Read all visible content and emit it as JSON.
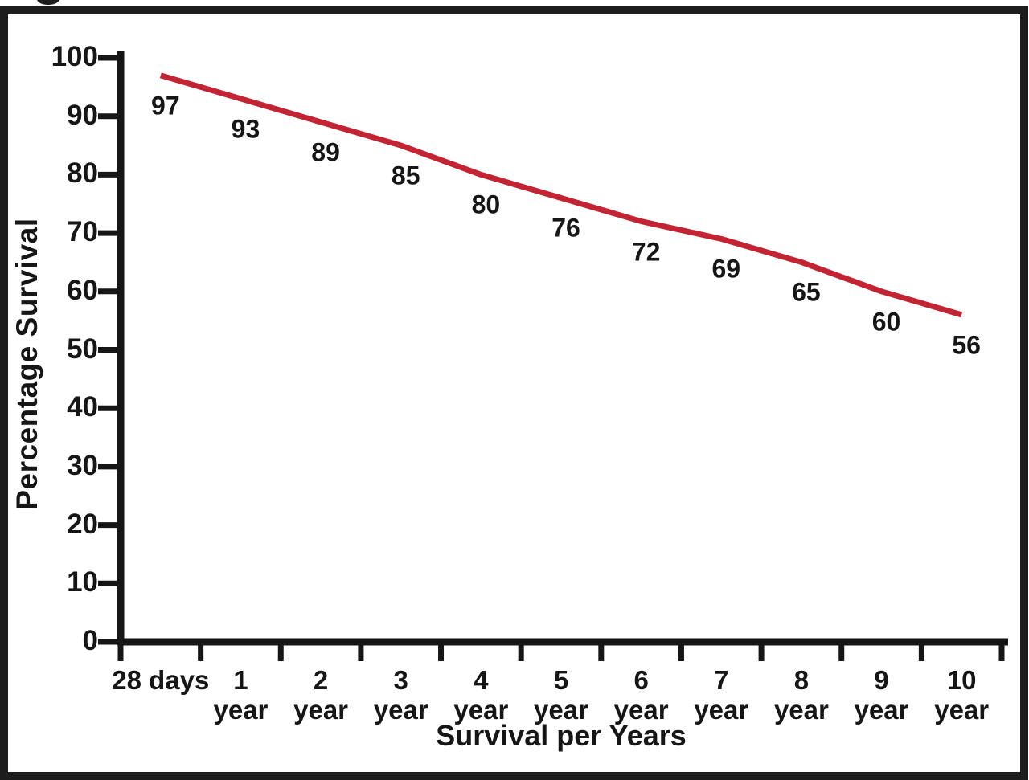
{
  "page": {
    "background": "#ffffff",
    "frame_color": "#1d1d1d",
    "text_color": "#161616"
  },
  "chart_data": {
    "type": "line",
    "title": "",
    "xlabel": "Survival per Years",
    "ylabel": "Percentage Survival",
    "categories": [
      "28 days",
      "1 year",
      "2 year",
      "3 year",
      "4 year",
      "5 year",
      "6 year",
      "7 year",
      "8 year",
      "9 year",
      "10 year"
    ],
    "x_tick_labels": [
      {
        "top": "28 days",
        "bottom": ""
      },
      {
        "top": "1",
        "bottom": "year"
      },
      {
        "top": "2",
        "bottom": "year"
      },
      {
        "top": "3",
        "bottom": "year"
      },
      {
        "top": "4",
        "bottom": "year"
      },
      {
        "top": "5",
        "bottom": "year"
      },
      {
        "top": "6",
        "bottom": "year"
      },
      {
        "top": "7",
        "bottom": "year"
      },
      {
        "top": "8",
        "bottom": "year"
      },
      {
        "top": "9",
        "bottom": "year"
      },
      {
        "top": "10",
        "bottom": "year"
      }
    ],
    "values": [
      97,
      93,
      89,
      85,
      80,
      76,
      72,
      69,
      65,
      60,
      56
    ],
    "data_labels": [
      "97",
      "93",
      "89",
      "85",
      "80",
      "76",
      "72",
      "69",
      "65",
      "60",
      "56"
    ],
    "yticks": [
      100,
      90,
      80,
      70,
      60,
      50,
      40,
      30,
      20,
      10,
      0
    ],
    "ylim": [
      0,
      100
    ],
    "grid": false,
    "legend": false,
    "line_color": "#c22433"
  }
}
